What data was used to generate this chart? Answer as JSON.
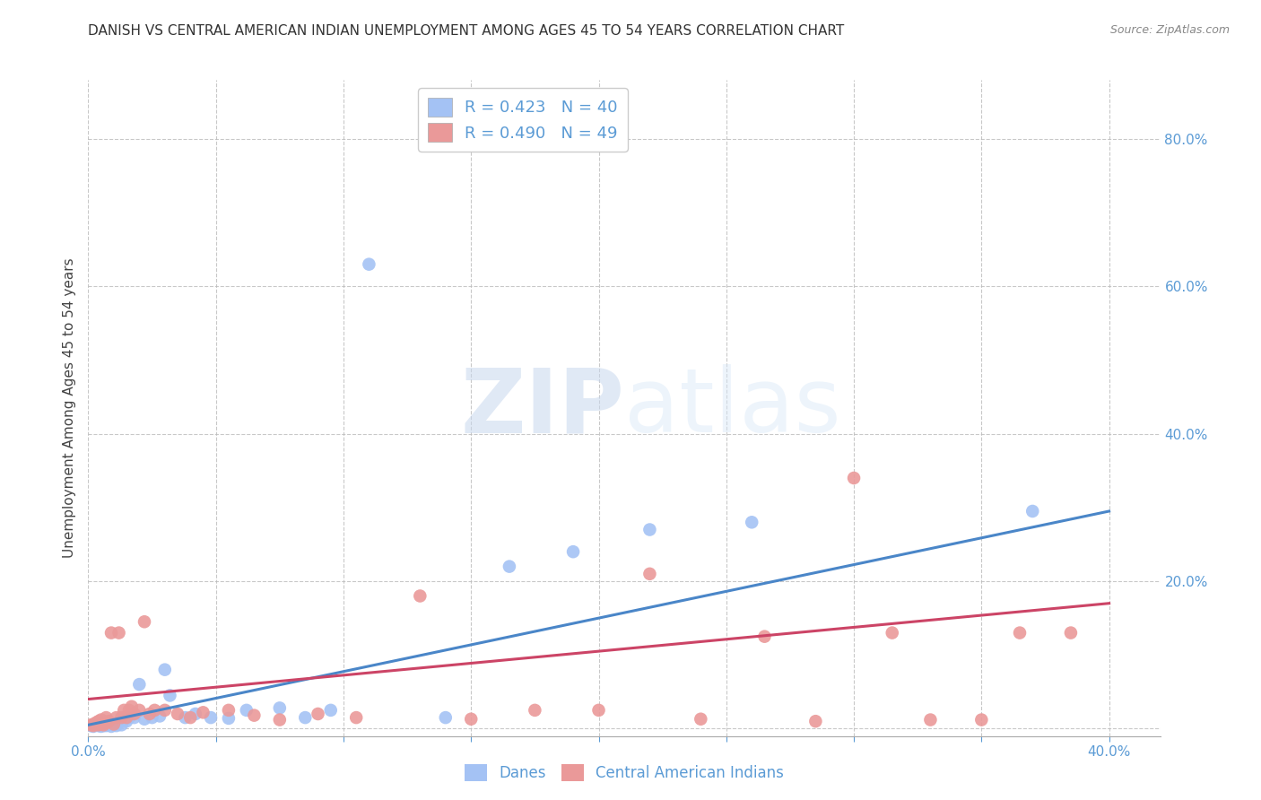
{
  "title": "DANISH VS CENTRAL AMERICAN INDIAN UNEMPLOYMENT AMONG AGES 45 TO 54 YEARS CORRELATION CHART",
  "source": "Source: ZipAtlas.com",
  "ylabel": "Unemployment Among Ages 45 to 54 years",
  "xlim": [
    0.0,
    0.42
  ],
  "ylim": [
    -0.01,
    0.88
  ],
  "danes_R": 0.423,
  "danes_N": 40,
  "cai_R": 0.49,
  "cai_N": 49,
  "danes_color": "#a4c2f4",
  "cai_color": "#ea9999",
  "danes_line_color": "#4a86c8",
  "cai_line_color": "#cc4466",
  "danes_x": [
    0.001,
    0.002,
    0.003,
    0.004,
    0.005,
    0.005,
    0.006,
    0.007,
    0.007,
    0.008,
    0.009,
    0.01,
    0.011,
    0.012,
    0.013,
    0.014,
    0.015,
    0.016,
    0.018,
    0.02,
    0.022,
    0.025,
    0.028,
    0.03,
    0.032,
    0.038,
    0.042,
    0.048,
    0.055,
    0.062,
    0.075,
    0.085,
    0.095,
    0.11,
    0.14,
    0.165,
    0.19,
    0.22,
    0.26,
    0.37
  ],
  "danes_y": [
    0.004,
    0.003,
    0.005,
    0.004,
    0.003,
    0.006,
    0.004,
    0.005,
    0.004,
    0.006,
    0.003,
    0.005,
    0.004,
    0.008,
    0.005,
    0.012,
    0.01,
    0.015,
    0.015,
    0.06,
    0.013,
    0.015,
    0.017,
    0.08,
    0.045,
    0.015,
    0.02,
    0.015,
    0.014,
    0.025,
    0.028,
    0.015,
    0.025,
    0.63,
    0.015,
    0.22,
    0.24,
    0.27,
    0.28,
    0.295
  ],
  "cai_x": [
    0.001,
    0.002,
    0.002,
    0.003,
    0.004,
    0.004,
    0.005,
    0.005,
    0.006,
    0.007,
    0.007,
    0.008,
    0.009,
    0.01,
    0.011,
    0.012,
    0.013,
    0.014,
    0.015,
    0.016,
    0.017,
    0.018,
    0.02,
    0.022,
    0.024,
    0.026,
    0.03,
    0.035,
    0.04,
    0.045,
    0.055,
    0.065,
    0.075,
    0.09,
    0.105,
    0.13,
    0.15,
    0.175,
    0.2,
    0.22,
    0.24,
    0.265,
    0.285,
    0.3,
    0.315,
    0.33,
    0.35,
    0.365,
    0.385
  ],
  "cai_y": [
    0.005,
    0.006,
    0.004,
    0.008,
    0.005,
    0.01,
    0.006,
    0.012,
    0.005,
    0.008,
    0.015,
    0.01,
    0.13,
    0.006,
    0.015,
    0.13,
    0.015,
    0.025,
    0.015,
    0.025,
    0.03,
    0.02,
    0.025,
    0.145,
    0.02,
    0.025,
    0.025,
    0.02,
    0.015,
    0.022,
    0.025,
    0.018,
    0.012,
    0.02,
    0.015,
    0.18,
    0.013,
    0.025,
    0.025,
    0.21,
    0.013,
    0.125,
    0.01,
    0.34,
    0.13,
    0.012,
    0.012,
    0.13,
    0.13
  ],
  "danes_line_x0": 0.0,
  "danes_line_y0": 0.005,
  "danes_line_x1": 0.4,
  "danes_line_y1": 0.295,
  "cai_line_x0": 0.0,
  "cai_line_y0": 0.04,
  "cai_line_x1": 0.4,
  "cai_line_y1": 0.17,
  "watermark_zip": "ZIP",
  "watermark_atlas": "atlas",
  "background_color": "#ffffff",
  "grid_color": "#bbbbbb",
  "title_fontsize": 11,
  "axis_label_color": "#5b9bd5",
  "source_color": "#888888"
}
